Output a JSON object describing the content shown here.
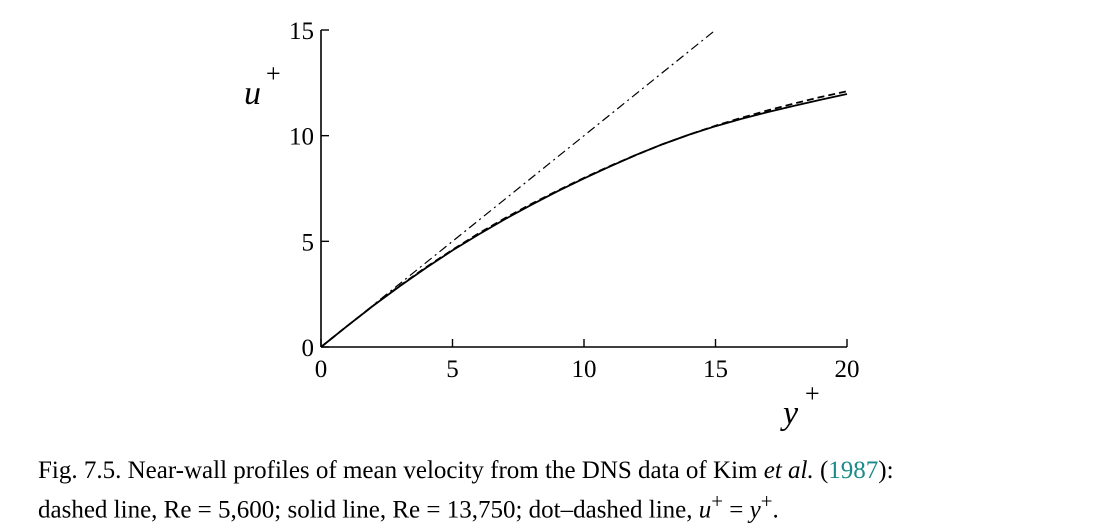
{
  "chart_data": {
    "type": "line",
    "xlabel": "y",
    "xlabel_sup": "+",
    "ylabel": "u",
    "ylabel_sup": "+",
    "xlim": [
      0,
      20
    ],
    "ylim": [
      0,
      15
    ],
    "xticks": [
      "0",
      "5",
      "10",
      "15",
      "20"
    ],
    "yticks": [
      "0",
      "5",
      "10",
      "15"
    ],
    "grid": false,
    "series": [
      {
        "style": "dashed",
        "color": "#000000",
        "x": [
          0,
          1,
          2,
          3,
          4,
          5,
          6,
          7,
          8,
          9,
          10,
          11,
          12,
          13,
          14,
          15,
          16,
          17,
          18,
          19,
          20
        ],
        "y": [
          0,
          1.0,
          1.97,
          2.9,
          3.78,
          4.6,
          5.38,
          6.1,
          6.77,
          7.4,
          8.0,
          8.57,
          9.1,
          9.6,
          10.05,
          10.47,
          10.85,
          11.2,
          11.52,
          11.83,
          12.1
        ]
      },
      {
        "style": "solid",
        "color": "#000000",
        "x": [
          0,
          1,
          2,
          3,
          4,
          5,
          6,
          7,
          8,
          9,
          10,
          11,
          12,
          13,
          14,
          15,
          16,
          17,
          18,
          19,
          20
        ],
        "y": [
          0,
          1.0,
          1.97,
          2.88,
          3.75,
          4.57,
          5.33,
          6.05,
          6.73,
          7.37,
          7.98,
          8.55,
          9.1,
          9.6,
          10.05,
          10.45,
          10.8,
          11.12,
          11.42,
          11.7,
          11.97
        ]
      },
      {
        "style": "dashdot",
        "color": "#000000",
        "x": [
          0,
          15
        ],
        "y": [
          0,
          15
        ]
      }
    ]
  },
  "caption": {
    "line1_prefix": "Fig. 7.5. Near-wall profiles of mean velocity from the DNS data of Kim ",
    "line1_etal": "et al.",
    "line1_open": " (",
    "line1_year": "1987",
    "line1_close": "):",
    "line2_text": "dashed line, Re = 5,600; solid line, Re = 13,750; dot–dashed line, ",
    "line2_u": "u",
    "line2_eq": " = ",
    "line2_y": "y",
    "line2_end": ".",
    "sup_plus": "+"
  }
}
